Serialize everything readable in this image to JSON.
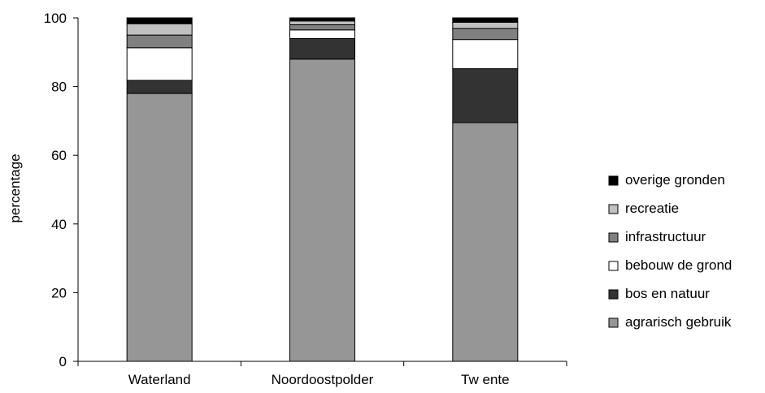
{
  "chart_data": {
    "type": "bar",
    "stacked": true,
    "categories": [
      "Waterland",
      "Noordoostpolder",
      "Tw ente"
    ],
    "series": [
      {
        "name": "agrarisch gebruik",
        "color": "#969696",
        "values": [
          78,
          88,
          69.5
        ]
      },
      {
        "name": "bos en natuur",
        "color": "#333333",
        "values": [
          3.8,
          6,
          15.7
        ]
      },
      {
        "name": "bebouw de grond",
        "color": "#ffffff",
        "values": [
          9.5,
          2.5,
          8.5
        ]
      },
      {
        "name": "infrastructuur",
        "color": "#808080",
        "values": [
          3.7,
          1.5,
          3.2
        ]
      },
      {
        "name": "recreatie",
        "color": "#c0c0c0",
        "values": [
          3.3,
          1.1,
          1.8
        ]
      },
      {
        "name": "overige gronden",
        "color": "#000000",
        "values": [
          1.7,
          0.9,
          1.3
        ]
      }
    ],
    "xlabel": "",
    "ylabel": "percentage",
    "ylim": [
      0,
      100
    ],
    "yticks": [
      0,
      20,
      40,
      60,
      80,
      100
    ],
    "grid": false,
    "legend": "right"
  }
}
